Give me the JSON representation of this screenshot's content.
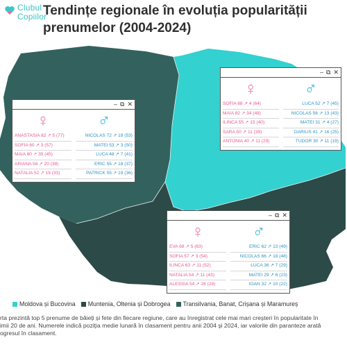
{
  "logo": {
    "line1": "Clubul",
    "line2": "Copiilor"
  },
  "title": "Tendințe regionale în evoluția popularității prenumelor (2004-2024)",
  "colors": {
    "moldova": "#33d1cf",
    "muntenia": "#2c4a47",
    "transilvania": "#33625e",
    "female": "#f07aa5",
    "male": "#39b8d8"
  },
  "symbols": {
    "female": "♀",
    "male": "♂",
    "copy": "⧉",
    "close": "✕",
    "minimize": "–"
  },
  "panels": {
    "transilvania": {
      "female": [
        "ANASTASIA 82 ↗ 5 (77)",
        "SOFIA 60 ↗ 3 (57)",
        "MAIA 80 ↗ 35 (45)",
        "ARIANA 58 ↗ 20 (38)",
        "NATALIA 52 ↗ 19 (33)"
      ],
      "male": [
        "NICOLAS 72 ↗ 19 (53)",
        "MATEI 53 ↗ 3 (50)",
        "LUCA 48 ↗ 7 (41)",
        "ERIC 55 ↗ 18 (37)",
        "PATRICK 55 ↗ 19 (36)"
      ]
    },
    "moldova": {
      "female": [
        "SOFIA 68 ↗ 4 (64)",
        "MAIA 82 ↗ 34 (48)",
        "ILINCA 55 ↗ 15 (40)",
        "SARA 50 ↗ 11 (39)",
        "ANTONIA 40 ↗ 11 (29)"
      ],
      "male": [
        "LUCA 52 ↗ 7 (45)",
        "NICOLAS 56 ↗ 13 (43)",
        "MATEI 31 ↗ 4 (27)",
        "DARIUS 41 ↗ 16 (25)",
        "TUDOR 30 ↗ 11 (19)"
      ]
    },
    "muntenia": {
      "female": [
        "EVA 68 ↗ 5 (63)",
        "SOFIA 57 ↗ 3 (54)",
        "ILINCA 63 ↗ 11 (52)",
        "NATALIA 54 ↗ 11 (43)",
        "ALESSIA 54 ↗ 26 (28)"
      ],
      "male": [
        "ERIC 62 ↗ 13 (49)",
        "NICOLAS 66 ↗ 18 (48)",
        "LUCA 36 ↗ 7 (29)",
        "MATEI 29 ↗ 6 (23)",
        "IOAN 32 ↗ 10 (22)"
      ]
    }
  },
  "legend": [
    {
      "label": "Moldova și Bucovina",
      "color": "#33d1cf"
    },
    {
      "label": "Muntenia, Oltenia și Dobrogea",
      "color": "#2c4a47"
    },
    {
      "label": "Transilvania, Banat, Crișana și Maramureș",
      "color": "#33625e"
    }
  ],
  "footnote": {
    "line1": "rta prezintă top 5 prenume de băieți și fete din fiecare regiune, care au înregistrat cele mai mari creșteri în popularitate în",
    "line2": "imii 20 de ani. Numerele indică poziția medie lunară în clasament pentru anii 2004 și 2024, iar valorile din paranteze arată",
    "line3": "ogresul în clasament."
  }
}
